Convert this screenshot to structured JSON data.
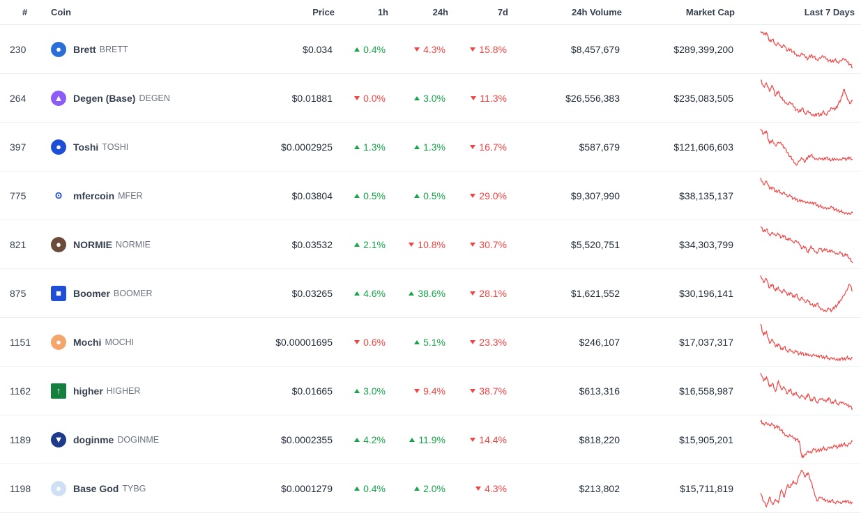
{
  "headers": {
    "rank": "#",
    "coin": "Coin",
    "price": "Price",
    "h1": "1h",
    "h24": "24h",
    "d7": "7d",
    "volume": "24h Volume",
    "market_cap": "Market Cap",
    "last7": "Last 7 Days"
  },
  "colors": {
    "up": "#16a34a",
    "down": "#ef4444",
    "sparkline": "#ef4444"
  },
  "rows": [
    {
      "rank": "230",
      "name": "Brett",
      "symbol": "BRETT",
      "icon": "brett-icon",
      "icon_color": "#2b6fd6",
      "icon_glyph": "●",
      "price": "$0.034",
      "h1": "0.4%",
      "h1_dir": "up",
      "h24": "4.3%",
      "h24_dir": "down",
      "d7": "15.8%",
      "d7_dir": "down",
      "volume": "$8,457,679",
      "market_cap": "$289,399,200",
      "spark": [
        92,
        85,
        88,
        70,
        74,
        62,
        66,
        55,
        60,
        48,
        52,
        45,
        40,
        36,
        42,
        34,
        30,
        38,
        34,
        28,
        32,
        36,
        30,
        26,
        24,
        28,
        22,
        26,
        30,
        24,
        18,
        10
      ]
    },
    {
      "rank": "264",
      "name": "Degen (Base)",
      "symbol": "DEGEN",
      "icon": "degen-icon",
      "icon_color": "#8b5cf6",
      "icon_glyph": "▲",
      "price": "$0.01881",
      "h1": "0.0%",
      "h1_dir": "down",
      "h24": "3.0%",
      "h24_dir": "up",
      "d7": "11.3%",
      "d7_dir": "down",
      "volume": "$26,556,383",
      "market_cap": "$235,083,505",
      "spark": [
        94,
        80,
        88,
        70,
        82,
        60,
        70,
        55,
        50,
        42,
        46,
        38,
        30,
        26,
        34,
        22,
        28,
        20,
        16,
        22,
        18,
        26,
        20,
        28,
        34,
        30,
        40,
        52,
        74,
        60,
        44,
        50
      ]
    },
    {
      "rank": "397",
      "name": "Toshi",
      "symbol": "TOSHI",
      "icon": "toshi-icon",
      "icon_color": "#1d4ed8",
      "icon_glyph": "●",
      "price": "$0.0002925",
      "h1": "1.3%",
      "h1_dir": "up",
      "h24": "1.3%",
      "h24_dir": "up",
      "d7": "16.7%",
      "d7_dir": "down",
      "volume": "$587,679",
      "market_cap": "$121,606,603",
      "spark": [
        96,
        84,
        90,
        62,
        70,
        56,
        64,
        60,
        52,
        40,
        30,
        22,
        10,
        20,
        26,
        18,
        30,
        34,
        28,
        24,
        26,
        22,
        28,
        24,
        22,
        26,
        24,
        22,
        26,
        24,
        28,
        24
      ]
    },
    {
      "rank": "775",
      "name": "mfercoin",
      "symbol": "MFER",
      "icon": "mfer-icon",
      "icon_color": "#ffffff",
      "icon_glyph": "ʘ",
      "price": "$0.03804",
      "h1": "0.5%",
      "h1_dir": "up",
      "h24": "0.5%",
      "h24_dir": "up",
      "d7": "29.0%",
      "d7_dir": "down",
      "volume": "$9,307,990",
      "market_cap": "$38,135,137",
      "spark": [
        94,
        78,
        86,
        68,
        72,
        62,
        64,
        58,
        60,
        50,
        52,
        46,
        44,
        40,
        42,
        38,
        36,
        34,
        36,
        30,
        28,
        26,
        24,
        22,
        26,
        20,
        18,
        16,
        14,
        12,
        10,
        12
      ]
    },
    {
      "rank": "821",
      "name": "NORMIE",
      "symbol": "NORMIE",
      "icon": "normie-icon",
      "icon_color": "#6b4b3a",
      "icon_glyph": "●",
      "price": "$0.03532",
      "h1": "2.1%",
      "h1_dir": "up",
      "h24": "10.8%",
      "h24_dir": "down",
      "d7": "30.7%",
      "d7_dir": "down",
      "volume": "$5,520,751",
      "market_cap": "$34,303,799",
      "spark": [
        92,
        80,
        86,
        72,
        78,
        70,
        74,
        66,
        70,
        60,
        64,
        54,
        58,
        50,
        40,
        44,
        30,
        46,
        36,
        28,
        40,
        34,
        38,
        32,
        36,
        30,
        26,
        30,
        22,
        26,
        16,
        6
      ]
    },
    {
      "rank": "875",
      "name": "Boomer",
      "symbol": "BOOMER",
      "icon": "boomer-icon",
      "icon_color": "#1e4fd6",
      "icon_glyph": "■",
      "price": "$0.03265",
      "h1": "4.6%",
      "h1_dir": "up",
      "h24": "38.6%",
      "h24_dir": "up",
      "d7": "28.1%",
      "d7_dir": "down",
      "volume": "$1,621,552",
      "market_cap": "$30,196,141",
      "spark": [
        94,
        78,
        86,
        66,
        74,
        60,
        68,
        56,
        62,
        50,
        56,
        46,
        52,
        40,
        46,
        34,
        38,
        30,
        26,
        32,
        22,
        18,
        14,
        20,
        16,
        24,
        30,
        40,
        50,
        60,
        74,
        60
      ]
    },
    {
      "rank": "1151",
      "name": "Mochi",
      "symbol": "MOCHI",
      "icon": "mochi-icon",
      "icon_color": "#f3a56b",
      "icon_glyph": "●",
      "price": "$0.00001695",
      "h1": "0.6%",
      "h1_dir": "down",
      "h24": "5.1%",
      "h24_dir": "up",
      "d7": "23.3%",
      "d7_dir": "down",
      "volume": "$246,107",
      "market_cap": "$17,037,317",
      "spark": [
        94,
        70,
        78,
        52,
        60,
        44,
        50,
        38,
        44,
        34,
        38,
        30,
        34,
        28,
        30,
        26,
        28,
        24,
        26,
        22,
        24,
        20,
        22,
        18,
        20,
        16,
        14,
        18,
        16,
        20,
        18,
        20
      ]
    },
    {
      "rank": "1162",
      "name": "higher",
      "symbol": "HIGHER",
      "icon": "higher-icon",
      "icon_color": "#15803d",
      "icon_glyph": "↑",
      "price": "$0.01665",
      "h1": "3.0%",
      "h1_dir": "up",
      "h24": "9.4%",
      "h24_dir": "down",
      "d7": "38.7%",
      "d7_dir": "down",
      "volume": "$613,316",
      "market_cap": "$16,558,987",
      "spark": [
        96,
        76,
        86,
        62,
        70,
        50,
        76,
        54,
        60,
        44,
        56,
        40,
        48,
        34,
        40,
        30,
        44,
        26,
        36,
        22,
        32,
        30,
        24,
        34,
        20,
        28,
        18,
        24,
        20,
        16,
        14,
        6
      ]
    },
    {
      "rank": "1189",
      "name": "doginme",
      "symbol": "DOGINME",
      "icon": "doginme-icon",
      "icon_color": "#1e3a8a",
      "icon_glyph": "▼",
      "price": "$0.0002355",
      "h1": "4.2%",
      "h1_dir": "up",
      "h24": "11.9%",
      "h24_dir": "up",
      "d7": "14.4%",
      "d7_dir": "down",
      "volume": "$818,220",
      "market_cap": "$15,905,201",
      "spark": [
        94,
        90,
        92,
        86,
        88,
        82,
        84,
        76,
        70,
        64,
        66,
        60,
        58,
        54,
        20,
        28,
        34,
        30,
        38,
        34,
        36,
        40,
        38,
        42,
        40,
        44,
        42,
        46,
        48,
        46,
        50,
        54
      ]
    },
    {
      "rank": "1198",
      "name": "Base God",
      "symbol": "TYBG",
      "icon": "tybg-icon",
      "icon_color": "#cfe0f5",
      "icon_glyph": "●",
      "price": "$0.0001279",
      "h1": "0.4%",
      "h1_dir": "up",
      "h24": "2.0%",
      "h24_dir": "up",
      "d7": "4.3%",
      "d7_dir": "down",
      "volume": "$213,802",
      "market_cap": "$15,711,819",
      "spark": [
        40,
        20,
        6,
        30,
        12,
        24,
        16,
        48,
        30,
        60,
        54,
        70,
        62,
        84,
        96,
        80,
        90,
        68,
        44,
        20,
        30,
        24,
        22,
        18,
        22,
        16,
        20,
        14,
        18,
        20,
        16,
        18
      ]
    }
  ]
}
